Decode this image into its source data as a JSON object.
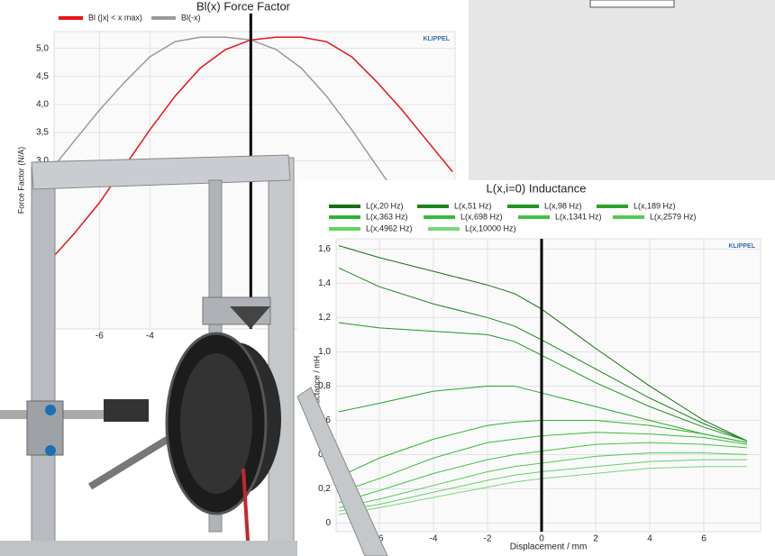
{
  "chart_data": [
    {
      "type": "line",
      "title": "Bl(x) Force Factor",
      "y_label": "Force Factor (N/A)",
      "logo": "KLIPPEL",
      "x": [
        -7.8,
        -7,
        -6,
        -5,
        -4,
        -3,
        -2,
        -1,
        0,
        1,
        2,
        3,
        4,
        5,
        6,
        7,
        8
      ],
      "series": [
        {
          "name": "Bl (|x| < x max)",
          "color": "#e8141c",
          "values": [
            1.3,
            1.7,
            2.25,
            2.9,
            3.55,
            4.15,
            4.65,
            4.98,
            5.15,
            5.2,
            5.2,
            5.12,
            4.85,
            4.4,
            3.9,
            3.35,
            2.8
          ]
        },
        {
          "name": "Bl(-x)",
          "color": "#9a9a9a",
          "values": [
            2.9,
            3.35,
            3.9,
            4.4,
            4.85,
            5.12,
            5.2,
            5.2,
            5.15,
            4.98,
            4.65,
            4.15,
            3.55,
            2.9,
            2.25,
            1.7,
            1.2
          ]
        }
      ],
      "cursor": 0,
      "xlim": [
        -7.8,
        8.1
      ],
      "ylim": [
        0,
        5.3
      ],
      "xticks": [
        -6,
        -4
      ],
      "yticks": [
        {
          "value": 3.0,
          "label": "3,0"
        },
        {
          "value": 3.5,
          "label": "3,5"
        },
        {
          "value": 4.0,
          "label": "4,0"
        },
        {
          "value": 4.5,
          "label": "4,5"
        },
        {
          "value": 5.0,
          "label": "5,0"
        }
      ],
      "grid": true
    },
    {
      "type": "line",
      "title": "L(x,i=0) Inductance",
      "x_label": "Displacement / mm",
      "y_label": "Inductance / mH",
      "logo": "KLIPPEL",
      "x": [
        -7.5,
        -6,
        -4,
        -2,
        -1,
        0,
        2,
        4,
        6,
        7.6
      ],
      "series": [
        {
          "name": "L(x,20 Hz)",
          "color": "#157015",
          "values": [
            1.62,
            1.55,
            1.47,
            1.39,
            1.34,
            1.25,
            1.02,
            0.8,
            0.6,
            0.48
          ]
        },
        {
          "name": "L(x,51 Hz)",
          "color": "#1b851b",
          "values": [
            1.49,
            1.38,
            1.28,
            1.2,
            1.15,
            1.07,
            0.9,
            0.73,
            0.58,
            0.48
          ]
        },
        {
          "name": "L(x,98 Hz)",
          "color": "#209720",
          "values": [
            1.17,
            1.14,
            1.12,
            1.1,
            1.06,
            0.98,
            0.82,
            0.68,
            0.56,
            0.48
          ]
        },
        {
          "name": "L(x,189 Hz)",
          "color": "#26a526",
          "values": [
            0.65,
            0.7,
            0.77,
            0.8,
            0.8,
            0.76,
            0.68,
            0.6,
            0.52,
            0.47
          ]
        },
        {
          "name": "L(x,363 Hz)",
          "color": "#2fb32f",
          "values": [
            0.27,
            0.38,
            0.49,
            0.57,
            0.59,
            0.6,
            0.6,
            0.57,
            0.52,
            0.47
          ]
        },
        {
          "name": "L(x,698 Hz)",
          "color": "#38bb38",
          "values": [
            0.18,
            0.26,
            0.38,
            0.47,
            0.49,
            0.51,
            0.53,
            0.52,
            0.5,
            0.46
          ]
        },
        {
          "name": "L(x,1341 Hz)",
          "color": "#42c342",
          "values": [
            0.12,
            0.19,
            0.29,
            0.37,
            0.4,
            0.42,
            0.46,
            0.47,
            0.46,
            0.44
          ]
        },
        {
          "name": "L(x,2579 Hz)",
          "color": "#52ca52",
          "values": [
            0.09,
            0.14,
            0.22,
            0.3,
            0.33,
            0.35,
            0.39,
            0.41,
            0.41,
            0.4
          ]
        },
        {
          "name": "L(x,4962 Hz)",
          "color": "#63d263",
          "values": [
            0.07,
            0.11,
            0.18,
            0.25,
            0.28,
            0.3,
            0.33,
            0.36,
            0.37,
            0.37
          ]
        },
        {
          "name": "L(x,10000 Hz)",
          "color": "#74d974",
          "values": [
            0.05,
            0.09,
            0.15,
            0.21,
            0.24,
            0.26,
            0.29,
            0.32,
            0.33,
            0.33
          ]
        }
      ],
      "cursor": 0,
      "xlim": [
        -7.6,
        8.1
      ],
      "ylim": [
        -0.05,
        1.66
      ],
      "xticks": [
        -6,
        -4,
        -2,
        0,
        2,
        4,
        6
      ],
      "yticks": [
        0,
        {
          "value": 0.2,
          "label": "0,2"
        },
        {
          "value": 0.4,
          "label": "0,4"
        },
        {
          "value": 0.6,
          "label": "0,6"
        },
        {
          "value": 0.8,
          "label": "0,8"
        },
        {
          "value": 1.0,
          "label": "1,0"
        },
        {
          "value": 1.2,
          "label": "1,2"
        },
        {
          "value": 1.4,
          "label": "1,4"
        },
        {
          "value": 1.6,
          "label": "1,6"
        }
      ],
      "grid": true
    }
  ]
}
